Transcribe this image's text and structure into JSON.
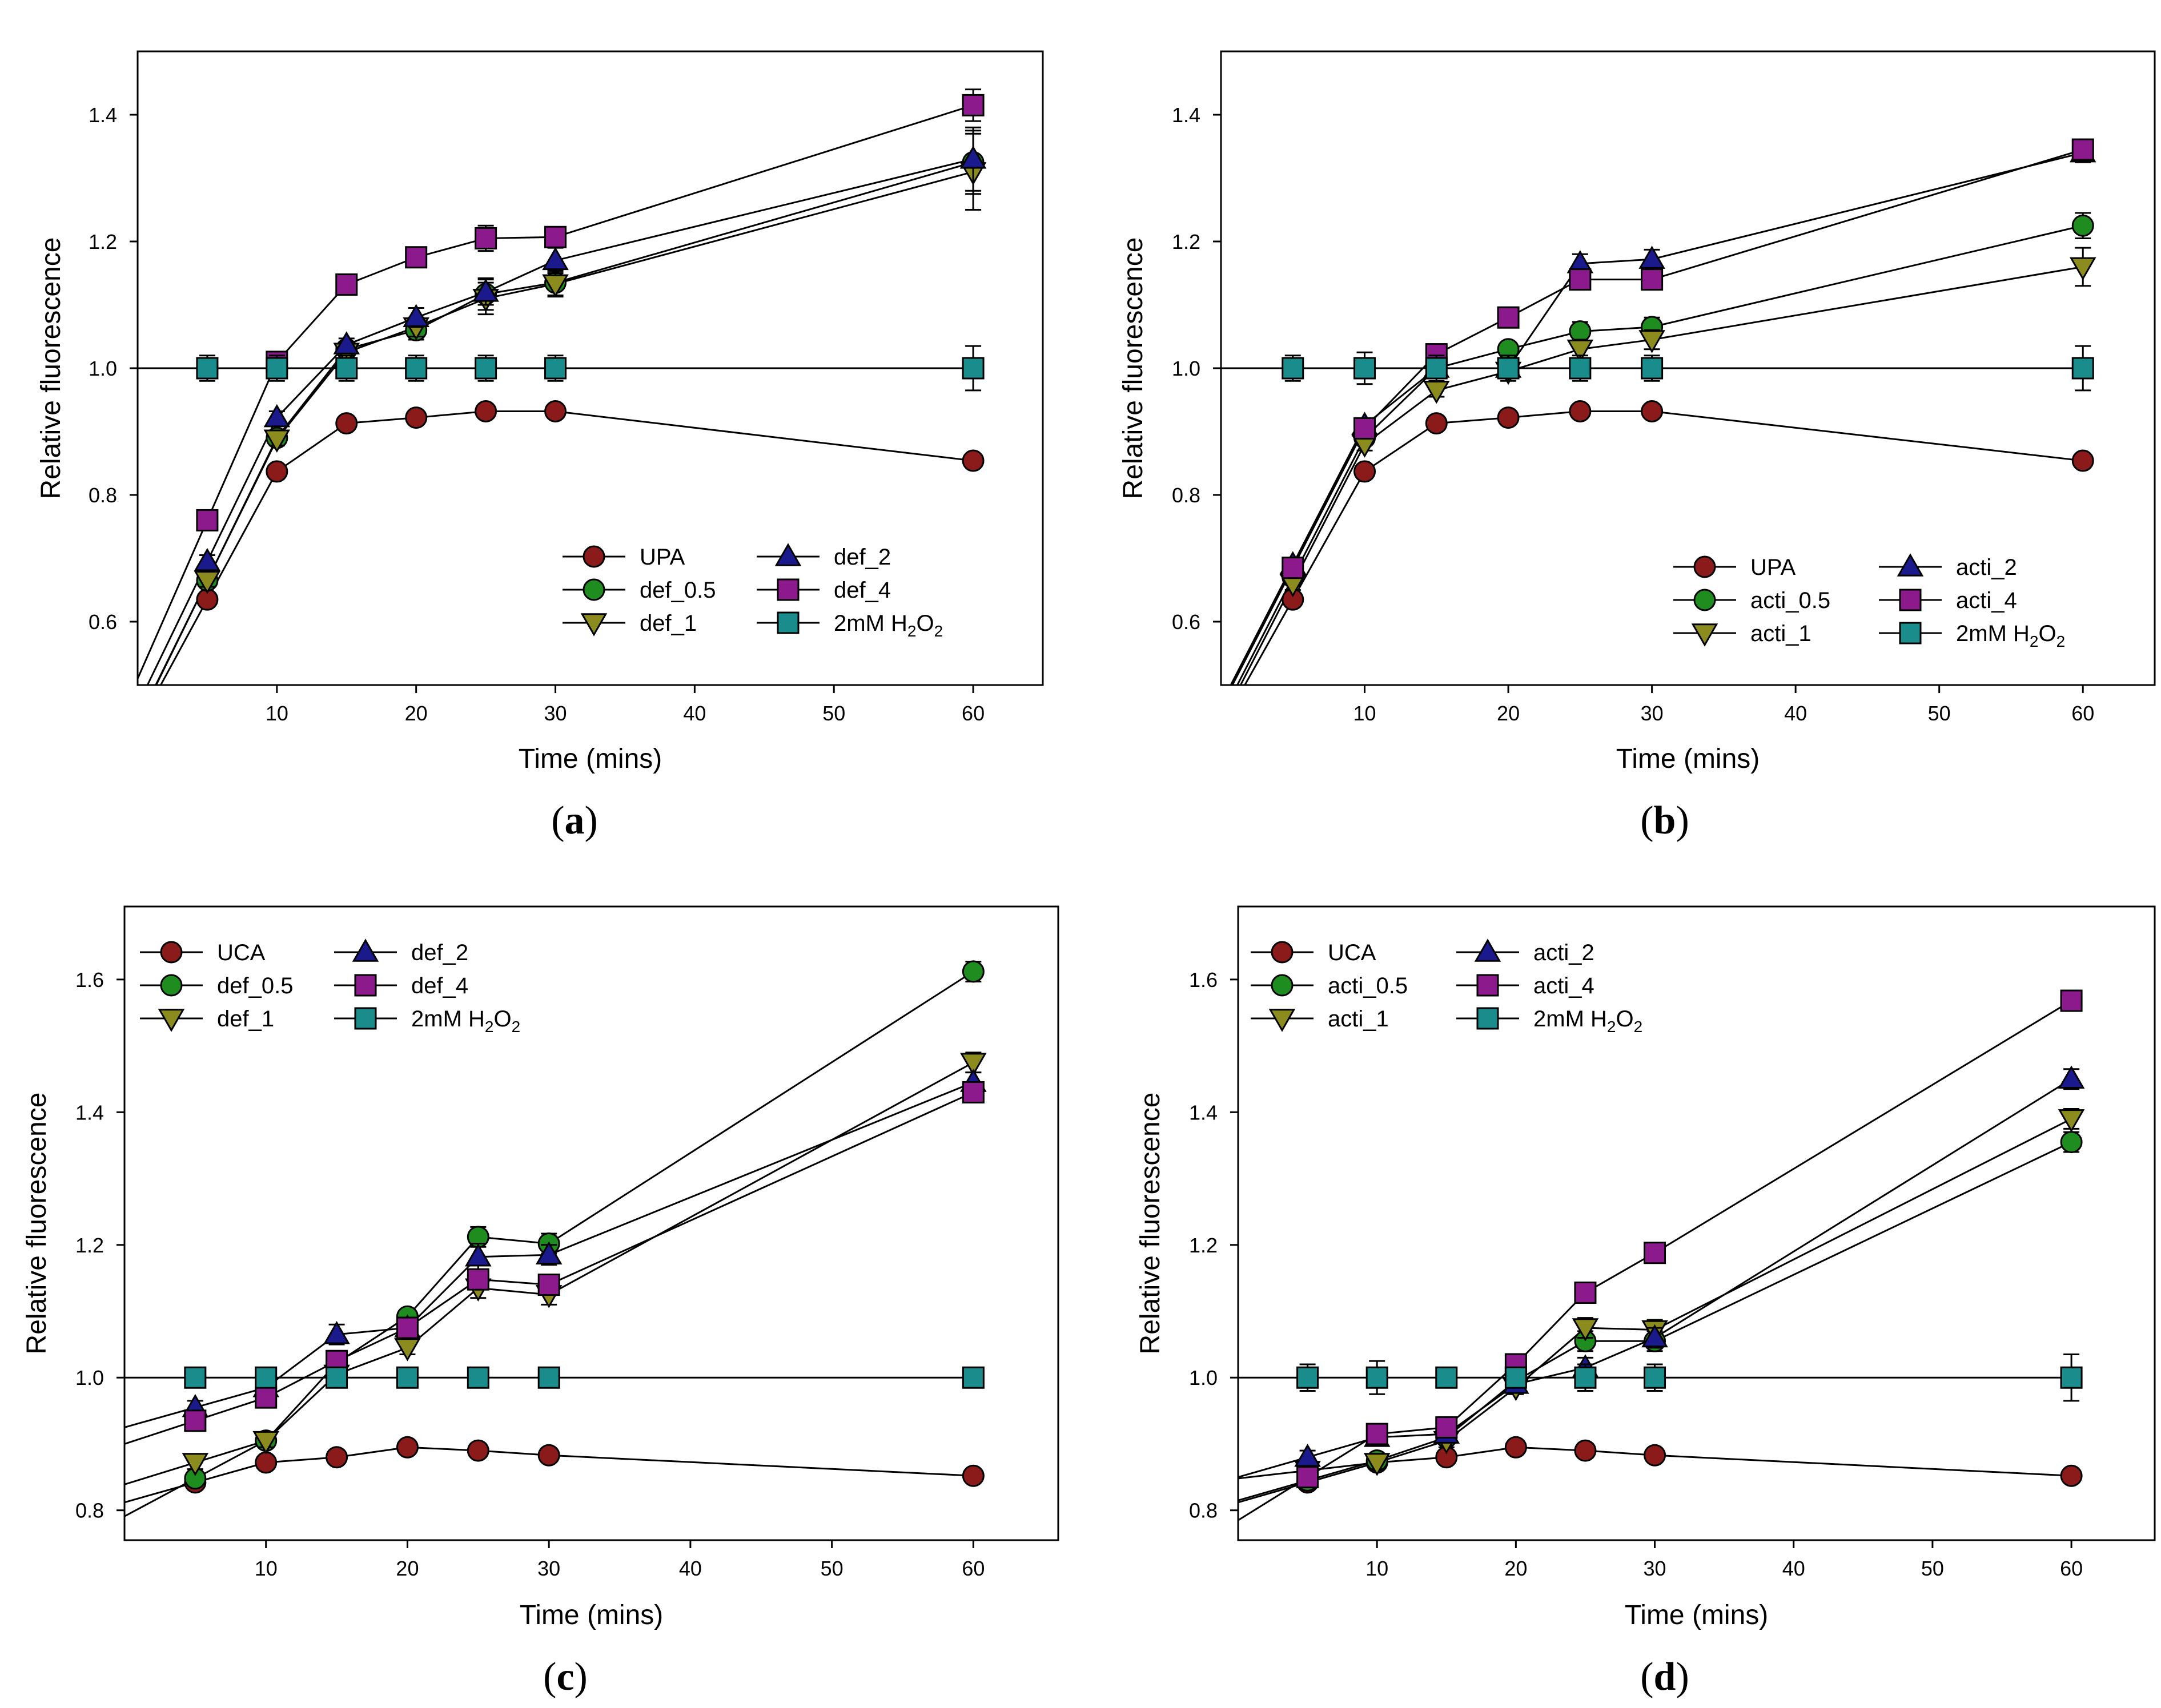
{
  "chart_data": [
    {
      "type": "line",
      "panel_label": "a",
      "xlabel": "Time (mins)",
      "ylabel": "Relative fluorescence",
      "xlim": [
        0,
        65
      ],
      "ylim": [
        0.5,
        1.5
      ],
      "xticks": [
        10,
        20,
        30,
        40,
        50,
        60
      ],
      "yticks": [
        0.6,
        0.8,
        1.0,
        1.2,
        1.4
      ],
      "ytick_labels": [
        "0.6",
        "0.8",
        "1.0",
        "1.2",
        "1.4"
      ],
      "legend_position": "bottom-right",
      "x": [
        5,
        10,
        15,
        20,
        25,
        30,
        60
      ],
      "series": [
        {
          "name": "UPA",
          "marker": "circle",
          "color": "#8b1a1a",
          "values": [
            0.635,
            0.837,
            0.913,
            0.922,
            0.932,
            0.932,
            0.854
          ],
          "errors": [
            0.008,
            0.008,
            0.008,
            0.008,
            0.008,
            0.008,
            0.01
          ]
        },
        {
          "name": "def_0.5",
          "marker": "circle",
          "color": "#1e8c1e",
          "values": [
            0.665,
            0.89,
            1.03,
            1.06,
            1.117,
            1.135,
            1.325
          ],
          "errors": [
            0.01,
            0.01,
            0.01,
            0.015,
            0.025,
            0.02,
            0.05
          ]
        },
        {
          "name": "def_1",
          "marker": "triangle-down",
          "color": "#8c8c1e",
          "values": [
            0.665,
            0.888,
            1.025,
            1.065,
            1.11,
            1.133,
            1.31
          ],
          "errors": [
            0.01,
            0.01,
            0.01,
            0.015,
            0.025,
            0.02,
            0.06
          ]
        },
        {
          "name": "def_2",
          "marker": "triangle-up",
          "color": "#1a1a8c",
          "values": [
            0.695,
            0.922,
            1.037,
            1.08,
            1.12,
            1.17,
            1.33
          ],
          "errors": [
            0.01,
            0.01,
            0.01,
            0.015,
            0.02,
            0.02,
            0.05
          ]
        },
        {
          "name": "def_4",
          "marker": "square",
          "color": "#8c1a8c",
          "values": [
            0.76,
            1.01,
            1.132,
            1.175,
            1.205,
            1.207,
            1.415
          ],
          "errors": [
            0.01,
            0.01,
            0.01,
            0.01,
            0.02,
            0.015,
            0.025
          ]
        },
        {
          "name": "2mM H₂O₂",
          "marker": "square",
          "color": "#1a8c8c",
          "values": [
            1.0,
            1.0,
            1.0,
            1.0,
            1.0,
            1.0,
            1.0
          ],
          "errors": [
            0.02,
            0.02,
            0.02,
            0.02,
            0.02,
            0.02,
            0.035
          ]
        }
      ]
    },
    {
      "type": "line",
      "panel_label": "b",
      "xlabel": "Time (mins)",
      "ylabel": "Relative fluorescence",
      "xlim": [
        0,
        65
      ],
      "ylim": [
        0.5,
        1.5
      ],
      "xticks": [
        10,
        20,
        30,
        40,
        50,
        60
      ],
      "yticks": [
        0.6,
        0.8,
        1.0,
        1.2,
        1.4
      ],
      "ytick_labels": [
        "0.6",
        "0.8",
        "1.0",
        "1.2",
        "1.4"
      ],
      "legend_position": "bottom-right",
      "x": [
        5,
        10,
        15,
        20,
        25,
        30,
        60
      ],
      "series": [
        {
          "name": "UPA",
          "marker": "circle",
          "color": "#8b1a1a",
          "values": [
            0.635,
            0.837,
            0.913,
            0.922,
            0.932,
            0.932,
            0.854
          ],
          "errors": [
            0.008,
            0.008,
            0.008,
            0.008,
            0.008,
            0.008,
            0.01
          ]
        },
        {
          "name": "acti_0.5",
          "marker": "circle",
          "color": "#1e8c1e",
          "values": [
            0.67,
            0.89,
            1.0,
            1.03,
            1.058,
            1.065,
            1.225
          ],
          "errors": [
            0.01,
            0.01,
            0.01,
            0.01,
            0.015,
            0.015,
            0.02
          ]
        },
        {
          "name": "acti_1",
          "marker": "triangle-down",
          "color": "#8c8c1e",
          "values": [
            0.66,
            0.88,
            0.965,
            0.995,
            1.03,
            1.045,
            1.16
          ],
          "errors": [
            0.01,
            0.01,
            0.01,
            0.01,
            0.015,
            0.015,
            0.03
          ]
        },
        {
          "name": "acti_2",
          "marker": "triangle-up",
          "color": "#1a1a8c",
          "values": [
            0.69,
            0.91,
            1.0,
            1.0,
            1.165,
            1.172,
            1.34
          ],
          "errors": [
            0.01,
            0.01,
            0.01,
            0.01,
            0.015,
            0.015,
            0.015
          ]
        },
        {
          "name": "acti_4",
          "marker": "square",
          "color": "#8c1a8c",
          "values": [
            0.685,
            0.905,
            1.022,
            1.08,
            1.14,
            1.14,
            1.345
          ],
          "errors": [
            0.01,
            0.01,
            0.01,
            0.01,
            0.015,
            0.015,
            0.015
          ]
        },
        {
          "name": "2mM H₂O₂",
          "marker": "square",
          "color": "#1a8c8c",
          "values": [
            1.0,
            1.0,
            1.0,
            1.0,
            1.0,
            1.0,
            1.0
          ],
          "errors": [
            0.02,
            0.025,
            0.02,
            0.02,
            0.02,
            0.02,
            0.035
          ]
        }
      ]
    },
    {
      "type": "line",
      "panel_label": "c",
      "xlabel": "Time (mins)",
      "ylabel": "Relative fluorescence",
      "xlim": [
        0,
        66
      ],
      "ylim": [
        0.755,
        1.71
      ],
      "xticks": [
        10,
        20,
        30,
        40,
        50,
        60
      ],
      "yticks": [
        0.8,
        1.0,
        1.2,
        1.4,
        1.6
      ],
      "ytick_labels": [
        "0.8",
        "1.0",
        "1.2",
        "1.4",
        "1.6"
      ],
      "legend_position": "top-left",
      "x": [
        5,
        10,
        15,
        20,
        25,
        30,
        60
      ],
      "series": [
        {
          "name": "UCA",
          "marker": "circle",
          "color": "#8b1a1a",
          "values": [
            0.842,
            0.872,
            0.88,
            0.895,
            0.89,
            0.883,
            0.852
          ],
          "errors": [
            0.008,
            0.008,
            0.008,
            0.008,
            0.008,
            0.008,
            0.008
          ]
        },
        {
          "name": "def_0.5",
          "marker": "circle",
          "color": "#1e8c1e",
          "values": [
            0.848,
            0.905,
            1.022,
            1.092,
            1.212,
            1.202,
            1.612
          ],
          "errors": [
            0.01,
            0.01,
            0.01,
            0.01,
            0.015,
            0.015,
            0.015
          ]
        },
        {
          "name": "def_1",
          "marker": "triangle-down",
          "color": "#8c8c1e",
          "values": [
            0.872,
            0.905,
            1.005,
            1.045,
            1.135,
            1.125,
            1.475
          ],
          "errors": [
            0.01,
            0.01,
            0.01,
            0.01,
            0.015,
            0.015,
            0.015
          ]
        },
        {
          "name": "def_2",
          "marker": "triangle-up",
          "color": "#1a1a8c",
          "values": [
            0.955,
            0.985,
            1.065,
            1.075,
            1.182,
            1.185,
            1.445
          ],
          "errors": [
            0.01,
            0.01,
            0.015,
            0.01,
            0.02,
            0.015,
            0.015
          ]
        },
        {
          "name": "def_4",
          "marker": "square",
          "color": "#8c1a8c",
          "values": [
            0.935,
            0.97,
            1.025,
            1.075,
            1.148,
            1.14,
            1.43
          ],
          "errors": [
            0.01,
            0.01,
            0.01,
            0.01,
            0.015,
            0.015,
            0.015
          ]
        },
        {
          "name": "2mM H₂O₂",
          "marker": "square",
          "color": "#1a8c8c",
          "values": [
            1.0,
            1.0,
            1.0,
            1.0,
            1.0,
            1.0,
            1.0
          ],
          "errors": [
            0.008,
            0.008,
            0.008,
            0.008,
            0.008,
            0.008,
            0.008
          ]
        }
      ]
    },
    {
      "type": "line",
      "panel_label": "d",
      "xlabel": "Time (mins)",
      "ylabel": "Relative fluorescence",
      "xlim": [
        0,
        66
      ],
      "ylim": [
        0.755,
        1.71
      ],
      "xticks": [
        10,
        20,
        30,
        40,
        50,
        60
      ],
      "yticks": [
        0.8,
        1.0,
        1.2,
        1.4,
        1.6
      ],
      "ytick_labels": [
        "0.8",
        "1.0",
        "1.2",
        "1.4",
        "1.6"
      ],
      "legend_position": "top-left",
      "x": [
        5,
        10,
        15,
        20,
        25,
        30,
        60
      ],
      "series": [
        {
          "name": "UCA",
          "marker": "circle",
          "color": "#8b1a1a",
          "values": [
            0.842,
            0.872,
            0.88,
            0.895,
            0.89,
            0.883,
            0.852
          ],
          "errors": [
            0.008,
            0.008,
            0.008,
            0.008,
            0.008,
            0.008,
            0.008
          ]
        },
        {
          "name": "acti_0.5",
          "marker": "circle",
          "color": "#1e8c1e",
          "values": [
            0.845,
            0.875,
            0.91,
            0.995,
            1.055,
            1.055,
            1.355
          ],
          "errors": [
            0.01,
            0.01,
            0.01,
            0.01,
            0.015,
            0.015,
            0.015
          ]
        },
        {
          "name": "acti_1",
          "marker": "triangle-down",
          "color": "#8c8c1e",
          "values": [
            0.86,
            0.872,
            0.905,
            0.985,
            1.075,
            1.072,
            1.39
          ],
          "errors": [
            0.01,
            0.01,
            0.01,
            0.01,
            0.015,
            0.015,
            0.015
          ]
        },
        {
          "name": "acti_2",
          "marker": "triangle-up",
          "color": "#1a1a8c",
          "values": [
            0.88,
            0.91,
            0.915,
            0.99,
            1.015,
            1.06,
            1.45
          ],
          "errors": [
            0.01,
            0.01,
            0.01,
            0.01,
            0.015,
            0.015,
            0.015
          ]
        },
        {
          "name": "acti_4",
          "marker": "square",
          "color": "#8c1a8c",
          "values": [
            0.85,
            0.915,
            0.925,
            1.02,
            1.128,
            1.188,
            1.568
          ],
          "errors": [
            0.01,
            0.01,
            0.01,
            0.01,
            0.01,
            0.01,
            0.015
          ]
        },
        {
          "name": "2mM H₂O₂",
          "marker": "square",
          "color": "#1a8c8c",
          "values": [
            1.0,
            1.0,
            1.0,
            1.0,
            1.0,
            1.0,
            1.0
          ],
          "errors": [
            0.02,
            0.025,
            0.008,
            0.008,
            0.02,
            0.02,
            0.035
          ]
        }
      ]
    }
  ]
}
